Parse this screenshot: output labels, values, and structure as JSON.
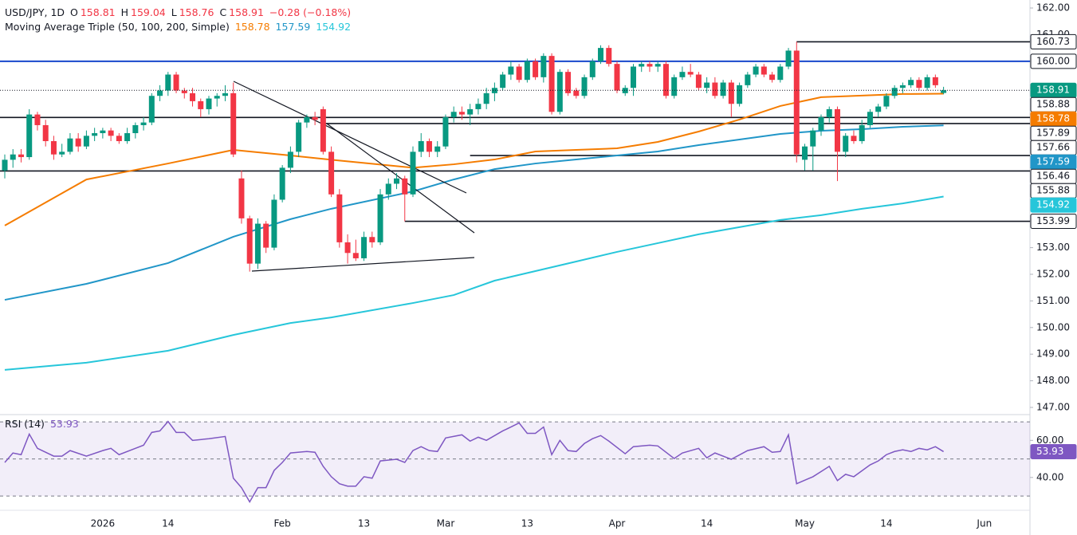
{
  "chart_data": [
    {
      "type": "candlestick",
      "title": "USD/JPY, 1D",
      "subtitle": "Moving Average Triple (50, 100, 200, Simple)",
      "ohlc_labels": [
        "O",
        "H",
        "L",
        "C"
      ],
      "change_label": "−0.28 (−0.18%)",
      "categories": [
        null,
        null,
        null,
        null,
        null,
        null,
        null,
        null,
        null,
        null,
        null,
        null,
        "2026",
        null,
        null,
        null,
        null,
        null,
        null,
        null,
        "14",
        null,
        null,
        null,
        null,
        null,
        null,
        null,
        null,
        null,
        null,
        null,
        null,
        null,
        "Feb",
        null,
        null,
        null,
        null,
        null,
        null,
        null,
        null,
        null,
        "13",
        null,
        null,
        null,
        null,
        null,
        null,
        null,
        null,
        null,
        "Mar",
        null,
        null,
        null,
        null,
        null,
        null,
        null,
        null,
        null,
        "13",
        null,
        null,
        null,
        null,
        null,
        null,
        null,
        null,
        null,
        null,
        "Apr",
        null,
        null,
        null,
        null,
        null,
        null,
        null,
        null,
        null,
        null,
        "14",
        null,
        null,
        null,
        null,
        null,
        null,
        null,
        null,
        null,
        null,
        null,
        "May",
        null,
        null,
        null,
        null,
        null,
        null,
        null,
        null,
        null,
        "14",
        null,
        null,
        null,
        null,
        null,
        null,
        null,
        null,
        null,
        null,
        null,
        "Jun"
      ],
      "open": [
        155.9,
        156.3,
        156.5,
        156.4,
        158.0,
        157.6,
        157.0,
        156.5,
        156.6,
        157.1,
        156.8,
        157.2,
        157.3,
        157.4,
        157.2,
        157.0,
        157.3,
        157.6,
        157.7,
        158.7,
        158.9,
        159.5,
        158.9,
        158.8,
        158.5,
        158.2,
        158.6,
        158.7,
        158.8,
        155.6,
        154.1,
        152.4,
        153.9,
        153.0,
        154.8,
        156.0,
        156.6,
        157.7,
        157.9,
        158.2,
        156.6,
        155.0,
        153.2,
        152.8,
        152.6,
        153.4,
        153.2,
        155.0,
        155.4,
        155.6,
        155.0,
        156.6,
        157.0,
        156.6,
        156.8,
        157.9,
        158.1,
        158.0,
        158.2,
        158.4,
        158.8,
        159.0,
        159.5,
        159.8,
        159.3,
        160.0,
        159.4,
        160.2,
        158.1,
        159.6,
        158.9,
        158.7,
        159.4,
        160.0,
        160.5,
        159.9,
        158.8,
        159.0,
        159.8,
        159.9,
        159.8,
        159.9,
        158.7,
        159.4,
        159.6,
        159.5,
        159.0,
        159.2,
        158.7,
        159.2,
        158.4,
        159.1,
        159.5,
        159.8,
        159.5,
        159.3,
        159.8,
        160.4,
        156.3,
        156.8,
        157.4,
        157.9,
        158.2,
        156.6,
        157.2,
        157.0,
        157.6,
        158.1,
        158.3,
        158.7,
        159.0,
        159.1,
        159.3,
        159.0,
        159.4,
        158.81,
        null,
        null,
        null,
        null,
        null
      ],
      "high": [
        156.5,
        156.7,
        156.7,
        158.2,
        158.1,
        157.8,
        157.2,
        156.9,
        157.3,
        157.3,
        157.4,
        157.5,
        157.5,
        157.5,
        157.3,
        157.5,
        157.7,
        157.9,
        158.8,
        159.1,
        159.6,
        159.6,
        159.0,
        159.0,
        158.6,
        158.7,
        158.8,
        159.1,
        159.2,
        155.9,
        154.2,
        154.1,
        154.0,
        155.0,
        156.1,
        156.8,
        157.8,
        158.0,
        158.1,
        158.3,
        156.8,
        155.2,
        153.5,
        153.3,
        153.6,
        153.6,
        155.2,
        155.6,
        155.8,
        155.7,
        156.8,
        157.3,
        157.1,
        157.0,
        158.0,
        158.3,
        158.3,
        158.4,
        158.6,
        159.0,
        159.2,
        159.6,
        160.0,
        159.9,
        160.1,
        160.1,
        160.3,
        160.3,
        159.7,
        159.7,
        159.0,
        159.5,
        160.1,
        160.6,
        160.6,
        160.0,
        159.1,
        159.9,
        160.0,
        160.0,
        160.0,
        160.0,
        159.5,
        159.8,
        159.9,
        159.6,
        159.4,
        159.4,
        159.3,
        159.3,
        159.2,
        159.6,
        159.9,
        159.9,
        159.6,
        159.9,
        160.5,
        160.73,
        156.9,
        157.5,
        158.0,
        158.3,
        158.3,
        157.3,
        157.4,
        157.8,
        158.2,
        158.4,
        158.8,
        159.1,
        159.2,
        159.4,
        159.4,
        159.5,
        159.5,
        159.04,
        null,
        null,
        null,
        null,
        null
      ],
      "low": [
        155.6,
        156.0,
        156.2,
        156.3,
        157.4,
        156.8,
        156.3,
        156.4,
        156.5,
        156.6,
        156.7,
        157.0,
        157.1,
        157.0,
        156.9,
        156.9,
        157.1,
        157.4,
        157.6,
        158.5,
        158.7,
        158.8,
        158.6,
        158.3,
        157.9,
        158.0,
        158.3,
        158.5,
        156.4,
        153.9,
        152.1,
        152.2,
        152.8,
        152.9,
        154.7,
        155.8,
        156.4,
        157.5,
        157.6,
        156.5,
        154.9,
        153.0,
        152.4,
        152.5,
        152.5,
        153.0,
        153.1,
        154.8,
        155.2,
        153.99,
        154.9,
        156.4,
        156.4,
        156.4,
        156.7,
        157.7,
        157.8,
        157.6,
        158.0,
        158.2,
        158.5,
        158.9,
        159.3,
        159.2,
        159.2,
        159.3,
        159.2,
        158.0,
        158.0,
        158.7,
        158.6,
        158.6,
        159.3,
        159.9,
        159.8,
        158.8,
        158.7,
        158.7,
        159.6,
        159.6,
        159.6,
        158.6,
        158.6,
        159.3,
        159.4,
        158.9,
        158.8,
        158.6,
        158.6,
        157.9,
        158.3,
        159.0,
        159.4,
        159.4,
        159.2,
        159.2,
        159.7,
        156.2,
        155.9,
        155.9,
        157.2,
        157.7,
        155.5,
        156.4,
        156.9,
        156.9,
        157.5,
        157.9,
        158.2,
        158.6,
        158.8,
        159.0,
        158.9,
        158.9,
        159.0,
        158.76,
        null,
        null,
        null,
        null,
        null
      ],
      "close": [
        156.3,
        156.5,
        156.4,
        158.0,
        157.6,
        157.0,
        156.5,
        156.6,
        157.1,
        156.8,
        157.2,
        157.3,
        157.4,
        157.2,
        157.0,
        157.3,
        157.6,
        157.7,
        158.7,
        158.9,
        159.5,
        158.9,
        158.8,
        158.5,
        158.2,
        158.6,
        158.7,
        158.8,
        156.5,
        154.1,
        152.4,
        153.9,
        153.0,
        154.8,
        156.0,
        156.6,
        157.7,
        157.9,
        157.8,
        156.6,
        155.0,
        153.2,
        152.8,
        152.6,
        153.4,
        153.2,
        155.0,
        155.4,
        155.6,
        155.0,
        156.6,
        157.0,
        156.6,
        156.8,
        157.9,
        158.1,
        158.0,
        158.2,
        158.4,
        158.8,
        159.0,
        159.5,
        159.8,
        159.3,
        160.0,
        159.4,
        160.2,
        158.1,
        159.6,
        158.8,
        158.7,
        159.4,
        160.0,
        160.5,
        159.9,
        158.9,
        159.0,
        159.8,
        159.9,
        159.8,
        159.9,
        158.7,
        159.4,
        159.6,
        159.5,
        159.0,
        159.2,
        158.7,
        159.2,
        158.4,
        159.1,
        159.5,
        159.8,
        159.5,
        159.3,
        159.8,
        160.4,
        156.5,
        156.8,
        157.4,
        157.9,
        158.2,
        156.6,
        157.2,
        157.0,
        157.6,
        158.1,
        158.3,
        158.7,
        159.0,
        159.1,
        159.3,
        159.0,
        159.4,
        159.1,
        158.91,
        null,
        null,
        null,
        null,
        null
      ],
      "up_color": "#089981",
      "down_color": "#f23645",
      "moving_averages": [
        {
          "color": "#f57c00",
          "x": [
            0,
            10,
            20,
            28,
            35,
            40,
            50,
            55,
            60,
            65,
            70,
            75,
            80,
            85,
            90,
            95,
            100,
            105,
            110,
            115
          ],
          "values": [
            153.83,
            155.56,
            156.16,
            156.67,
            156.46,
            156.3,
            156.0,
            156.13,
            156.31,
            156.61,
            156.67,
            156.73,
            156.97,
            157.36,
            157.81,
            158.32,
            158.65,
            158.71,
            158.77,
            158.78
          ]
        },
        {
          "color": "#2196c8",
          "x": [
            0,
            10,
            20,
            28,
            35,
            40,
            50,
            55,
            60,
            65,
            70,
            75,
            80,
            85,
            90,
            95,
            100,
            105,
            110,
            115
          ],
          "values": [
            151.04,
            151.64,
            152.42,
            153.41,
            154.07,
            154.46,
            155.11,
            155.56,
            155.95,
            156.16,
            156.31,
            156.46,
            156.61,
            156.85,
            157.06,
            157.27,
            157.39,
            157.45,
            157.54,
            157.59
          ]
        },
        {
          "color": "#26c6da",
          "x": [
            0,
            10,
            20,
            28,
            35,
            40,
            50,
            55,
            60,
            65,
            70,
            75,
            80,
            85,
            90,
            95,
            100,
            105,
            110,
            115
          ],
          "values": [
            148.41,
            148.68,
            149.13,
            149.72,
            150.17,
            150.38,
            150.92,
            151.22,
            151.76,
            152.12,
            152.48,
            152.84,
            153.17,
            153.5,
            153.77,
            154.04,
            154.22,
            154.46,
            154.66,
            154.92
          ]
        }
      ],
      "ylim": [
        146.73,
        162.3
      ],
      "yticks": [
        {
          "value": 147,
          "label": "147.00"
        },
        {
          "value": 148,
          "label": "148.00"
        },
        {
          "value": 149,
          "label": "149.00"
        },
        {
          "value": 150,
          "label": "150.00"
        },
        {
          "value": 151,
          "label": "151.00"
        },
        {
          "value": 152,
          "label": "152.00"
        },
        {
          "value": 153,
          "label": "153.00"
        },
        {
          "value": 154,
          "label": "154.00"
        },
        {
          "value": 155,
          "label": "155.00"
        },
        {
          "value": 156,
          "label": "156.00"
        },
        {
          "value": 157,
          "label": "157.00"
        },
        {
          "value": 158,
          "label": "158.00"
        },
        {
          "value": 159,
          "label": "159.00"
        },
        {
          "value": 160,
          "label": "160.00"
        },
        {
          "value": 161,
          "label": "161.00"
        },
        {
          "value": 162,
          "label": "162.00"
        }
      ],
      "grid": false,
      "levels": [
        160.73,
        {
          "value": 160,
          "label": "160.00"
        },
        158.88,
        157.89,
        157.66,
        156.46,
        155.88,
        153.99
      ],
      "level_colors": [
        "#131722",
        "#1848cc",
        "#131722",
        "#131722",
        "#131722",
        "#131722",
        "#131722",
        "#131722"
      ],
      "current_price_color": "#089981"
    },
    {
      "type": "line",
      "title": "RSI (14)",
      "color": "#7e57c2",
      "x": [
        0,
        1,
        2,
        3,
        4,
        6,
        7,
        8,
        10,
        12,
        13,
        14,
        16,
        17,
        18,
        19,
        20,
        21,
        22,
        23,
        25,
        27,
        28,
        29,
        30,
        31,
        32,
        33,
        34,
        35,
        37,
        38,
        39,
        40,
        41,
        42,
        43,
        44,
        45,
        46,
        48,
        49,
        50,
        51,
        52,
        53,
        54,
        56,
        57,
        58,
        59,
        61,
        62,
        63,
        64,
        65,
        66,
        67,
        68,
        69,
        70,
        71,
        72,
        73,
        74,
        76,
        77,
        79,
        80,
        82,
        83,
        85,
        86,
        87,
        89,
        91,
        93,
        94,
        95,
        96,
        97,
        99,
        101,
        102,
        103,
        104,
        106,
        107,
        108,
        109,
        110,
        111,
        112,
        113,
        114,
        115
      ],
      "values": [
        48.1,
        53.2,
        52.3,
        63.4,
        55.7,
        51.5,
        51.5,
        54.5,
        51.5,
        54.5,
        55.7,
        52.3,
        55.7,
        57.4,
        64.3,
        65.1,
        70.2,
        64.3,
        64.3,
        60,
        60.9,
        62.1,
        39.6,
        34.5,
        26.8,
        34.5,
        34.5,
        43.8,
        48.1,
        53.2,
        54,
        53.6,
        46,
        40.4,
        36.6,
        35.3,
        35.3,
        40.4,
        39.6,
        48.9,
        49.8,
        48.1,
        54.5,
        56.6,
        54.5,
        54,
        61.3,
        63,
        59.6,
        61.7,
        60,
        65.1,
        67.2,
        69.4,
        63.8,
        63.8,
        67.2,
        52.3,
        60,
        54.5,
        54,
        58.3,
        60.9,
        62.6,
        59.6,
        52.8,
        56.6,
        57.4,
        57,
        50.2,
        53.2,
        55.7,
        50.6,
        53.2,
        49.8,
        54.5,
        56.6,
        53.6,
        54,
        63,
        36.6,
        40.4,
        46,
        38.3,
        41.7,
        40.4,
        46.8,
        48.9,
        52.3,
        54,
        54.9,
        54,
        55.7,
        54.9,
        56.6,
        53.93
      ],
      "ylim": [
        22.3,
        73.9
      ],
      "yticks": [
        {
          "value": 40,
          "label": "40.00"
        },
        {
          "value": 60,
          "label": "60.00"
        }
      ],
      "levels": [
        30,
        50,
        70
      ]
    }
  ]
}
